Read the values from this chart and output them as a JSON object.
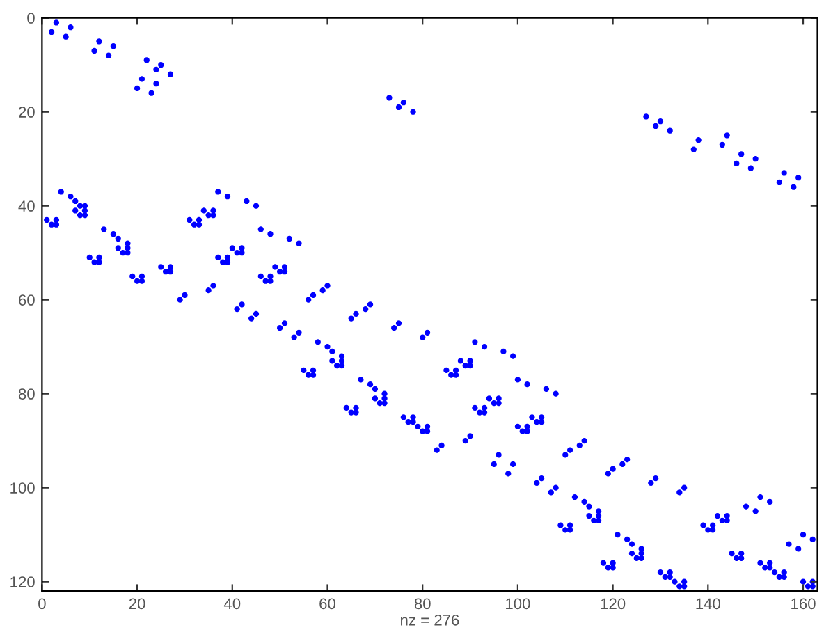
{
  "chart_data": {
    "type": "scatter",
    "xlabel": "nz = 276",
    "xlim": [
      0,
      163
    ],
    "ylim": [
      122,
      0
    ],
    "xticks": [
      0,
      20,
      40,
      60,
      80,
      100,
      120,
      140,
      160
    ],
    "yticks": [
      0,
      20,
      40,
      60,
      80,
      100,
      120
    ],
    "grid": false,
    "marker": "circle",
    "series": [
      {
        "color": "#0000ff",
        "x": [
          2,
          3,
          5,
          6,
          11,
          12,
          14,
          15,
          20,
          21,
          22,
          23,
          24,
          24,
          25,
          27,
          73,
          75,
          76,
          78,
          127,
          129,
          130,
          132,
          137,
          138,
          143,
          144,
          146,
          147,
          149,
          150,
          155,
          156,
          158,
          159,
          4,
          6,
          7,
          7,
          8,
          8,
          9,
          9,
          9,
          1,
          2,
          3,
          3,
          31,
          32,
          33,
          33,
          34,
          35,
          36,
          36,
          37,
          39,
          43,
          45,
          13,
          15,
          16,
          16,
          17,
          18,
          18,
          18,
          10,
          11,
          12,
          12,
          19,
          20,
          21,
          21,
          25,
          26,
          27,
          27,
          29,
          30,
          35,
          36,
          37,
          38,
          39,
          39,
          40,
          41,
          42,
          42,
          46,
          48,
          52,
          54,
          46,
          47,
          48,
          48,
          49,
          50,
          51,
          51,
          41,
          42,
          44,
          45,
          50,
          51,
          53,
          54,
          55,
          56,
          57,
          57,
          56,
          57,
          59,
          60,
          65,
          66,
          68,
          69,
          74,
          75,
          80,
          81,
          58,
          60,
          61,
          61,
          62,
          63,
          63,
          63,
          67,
          69,
          70,
          70,
          71,
          72,
          72,
          72,
          64,
          65,
          66,
          66,
          76,
          77,
          78,
          78,
          79,
          80,
          81,
          81,
          83,
          84,
          89,
          90,
          85,
          86,
          87,
          87,
          88,
          89,
          90,
          90,
          91,
          93,
          97,
          99,
          100,
          102,
          106,
          108,
          91,
          92,
          93,
          93,
          94,
          95,
          96,
          96,
          100,
          101,
          102,
          102,
          103,
          104,
          105,
          105,
          95,
          96,
          98,
          99,
          104,
          105,
          107,
          108,
          110,
          111,
          113,
          114,
          109,
          110,
          111,
          111,
          112,
          114,
          115,
          115,
          116,
          117,
          117,
          117,
          119,
          120,
          122,
          123,
          128,
          129,
          134,
          135,
          118,
          119,
          120,
          120,
          121,
          123,
          124,
          124,
          125,
          126,
          126,
          126,
          130,
          131,
          132,
          132,
          133,
          134,
          135,
          135,
          139,
          140,
          141,
          141,
          142,
          143,
          144,
          144,
          148,
          150,
          151,
          153,
          145,
          146,
          147,
          147,
          151,
          152,
          153,
          153,
          154,
          155,
          156,
          156,
          157,
          159,
          160,
          162,
          160,
          161,
          162,
          162
        ],
        "values": [
          3,
          1,
          4,
          2,
          7,
          5,
          8,
          6,
          15,
          13,
          9,
          16,
          14,
          11,
          10,
          12,
          17,
          19,
          18,
          20,
          21,
          23,
          22,
          24,
          28,
          26,
          27,
          25,
          31,
          29,
          32,
          30,
          35,
          33,
          36,
          34,
          37,
          38,
          39,
          41,
          40,
          42,
          40,
          41,
          42,
          43,
          44,
          44,
          43,
          43,
          44,
          44,
          43,
          41,
          42,
          42,
          41,
          37,
          38,
          39,
          40,
          45,
          46,
          47,
          49,
          50,
          50,
          49,
          48,
          51,
          52,
          52,
          51,
          55,
          56,
          56,
          55,
          53,
          54,
          54,
          53,
          60,
          59,
          58,
          57,
          51,
          52,
          52,
          51,
          49,
          50,
          50,
          49,
          45,
          46,
          47,
          48,
          55,
          56,
          56,
          55,
          53,
          54,
          54,
          53,
          62,
          61,
          64,
          63,
          66,
          65,
          68,
          67,
          75,
          76,
          76,
          75,
          60,
          59,
          58,
          57,
          64,
          63,
          62,
          61,
          66,
          65,
          68,
          67,
          69,
          70,
          71,
          73,
          74,
          74,
          73,
          72,
          77,
          78,
          79,
          81,
          82,
          82,
          81,
          80,
          83,
          84,
          84,
          83,
          85,
          86,
          86,
          85,
          87,
          88,
          88,
          87,
          92,
          91,
          90,
          89,
          75,
          76,
          76,
          75,
          73,
          74,
          74,
          73,
          69,
          70,
          71,
          72,
          77,
          78,
          79,
          80,
          83,
          84,
          84,
          83,
          81,
          82,
          82,
          81,
          87,
          88,
          88,
          87,
          85,
          86,
          86,
          85,
          95,
          93,
          97,
          95,
          99,
          98,
          101,
          100,
          93,
          92,
          91,
          90,
          108,
          109,
          109,
          108,
          102,
          103,
          104,
          106,
          107,
          107,
          106,
          105,
          97,
          96,
          95,
          94,
          99,
          98,
          101,
          100,
          116,
          117,
          117,
          116,
          110,
          111,
          112,
          114,
          115,
          115,
          114,
          113,
          118,
          119,
          119,
          118,
          120,
          121,
          121,
          120,
          108,
          109,
          109,
          108,
          106,
          107,
          107,
          106,
          104,
          105,
          102,
          103,
          114,
          115,
          115,
          114,
          116,
          117,
          117,
          116,
          118,
          119,
          119,
          118,
          112,
          113,
          110,
          111,
          120,
          121,
          121,
          120
        ]
      }
    ]
  }
}
